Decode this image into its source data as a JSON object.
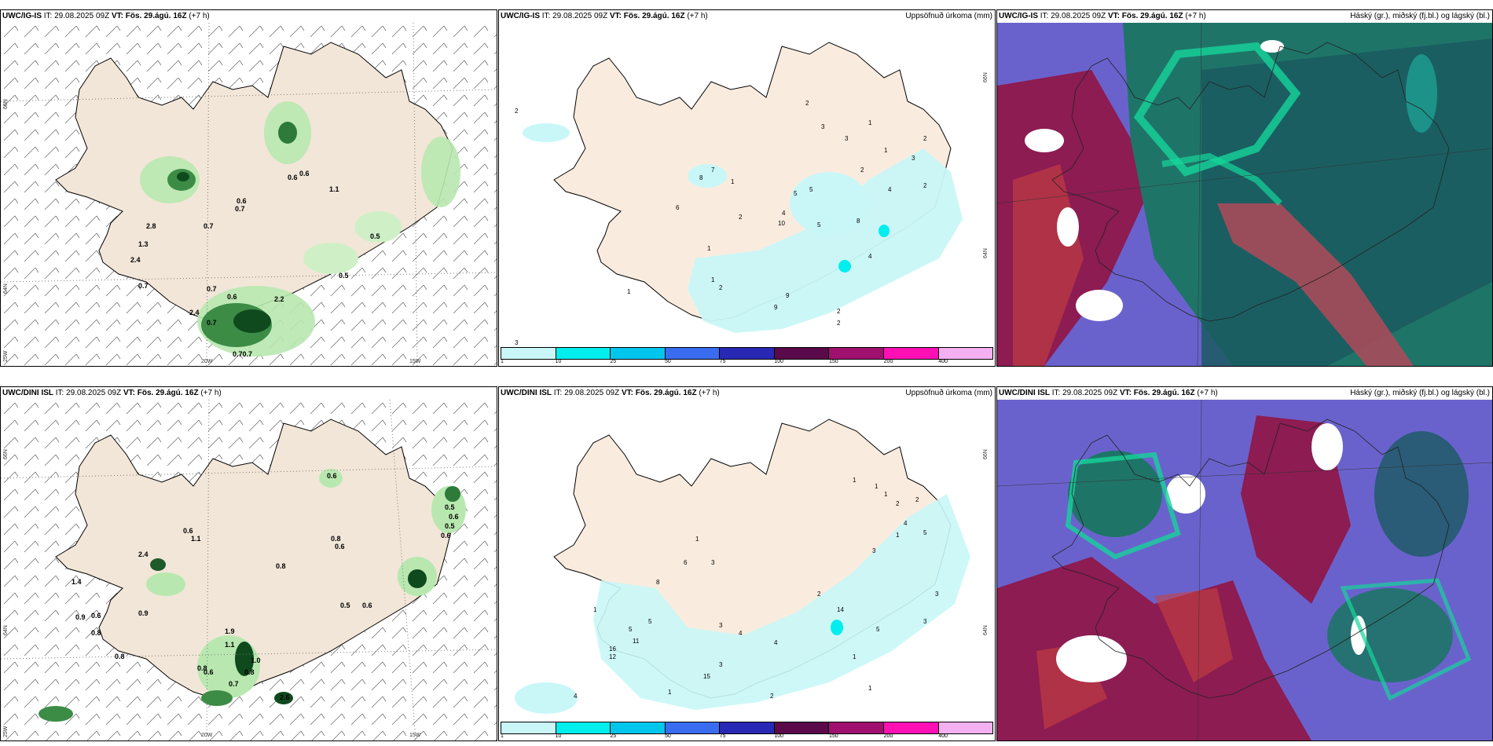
{
  "panels": [
    {
      "id": "top-wind",
      "model": "UWC/IG-IS",
      "it": "29.08.2025 09Z",
      "vt": "Fös. 29.ágú. 16Z",
      "lead": "(+7 h)",
      "right_label": ""
    },
    {
      "id": "top-precip",
      "model": "UWC/IG-IS",
      "it": "29.08.2025 09Z",
      "vt": "Fös. 29.ágú. 16Z",
      "lead": "(+7 h)",
      "right_label": "Uppsöfnuð úrkoma (mm)"
    },
    {
      "id": "top-cloud",
      "model": "UWC/IG-IS",
      "it": "29.08.2025 09Z",
      "vt": "Fös. 29.ágú. 16Z",
      "lead": "(+7 h)",
      "right_label": "Háský (gr.), miðský (fj.bl.) og lágský (bl.)"
    },
    {
      "id": "bot-wind",
      "model": "UWC/DINI ISL",
      "it": "29.08.2025 09Z",
      "vt": "Fös. 29.ágú. 16Z",
      "lead": "(+7 h)",
      "right_label": ""
    },
    {
      "id": "bot-precip",
      "model": "UWC/DINI ISL",
      "it": "29.08.2025 09Z",
      "vt": "Fös. 29.ágú. 16Z",
      "lead": "(+7 h)",
      "right_label": "Uppsöfnuð úrkoma (mm)"
    },
    {
      "id": "bot-cloud",
      "model": "UWC/DINI ISL",
      "it": "29.08.2025 09Z",
      "vt": "Fös. 29.ágú. 16Z",
      "lead": "(+7 h)",
      "right_label": "Háský (gr.), miðský (fj.bl.) og lágský (bl.)"
    }
  ],
  "labels": {
    "it": "IT:",
    "vt": "VT:"
  },
  "grid": {
    "lat_66": "66N",
    "lat_64": "64N",
    "lon_25": "25W",
    "lon_20": "20W",
    "lon_15": "15W"
  },
  "colorbar": {
    "ticks": [
      "1",
      "10",
      "25",
      "50",
      "75",
      "100",
      "150",
      "200",
      "400"
    ],
    "colors": [
      "#c9f7f7",
      "#00eeee",
      "#00c6ee",
      "#3a6cf0",
      "#2828b4",
      "#5a0a4a",
      "#a0106e",
      "#ff10b4",
      "#f4b0f0"
    ]
  },
  "wind_top_values": [
    "0.6",
    "0.7",
    "0.6",
    "1.1",
    "0.5",
    "0.7",
    "0.5",
    "0.7",
    "2.4",
    "0.6",
    "0.7",
    "0.70.7",
    "2.2",
    "0.6",
    "0.7",
    "2.4",
    "1.3",
    "2.8"
  ],
  "precip_top_values": [
    "2",
    "2",
    "3",
    "3",
    "1",
    "1",
    "3",
    "2",
    "2",
    "4",
    "5",
    "7",
    "8",
    "1",
    "6",
    "1",
    "2",
    "4",
    "5",
    "10",
    "5",
    "8",
    "1",
    "2",
    "9",
    "9",
    "2",
    "2",
    "1",
    "3",
    "4",
    "2"
  ],
  "wind_bot_values": [
    "0.6",
    "0.6",
    "1.1",
    "0.8",
    "0.6",
    "0.8",
    "0.5",
    "0.6",
    "0.9",
    "0.8",
    "1.4",
    "2.4",
    "0.9",
    "0.6",
    "0.8",
    "0.8",
    "1.9",
    "1.1",
    "1.0",
    "0.8",
    "0.7",
    "0.6",
    "2.6",
    "0.5",
    "0.6",
    "0.5",
    "0.6"
  ],
  "precip_bot_values": [
    "1",
    "1",
    "1",
    "2",
    "2",
    "1",
    "1",
    "3",
    "4",
    "5",
    "6",
    "3",
    "8",
    "1",
    "5",
    "16",
    "11",
    "12",
    "5",
    "3",
    "4",
    "4",
    "1",
    "15",
    "3",
    "2",
    "1",
    "1",
    "2",
    "14",
    "3",
    "4",
    "5",
    "3"
  ]
}
